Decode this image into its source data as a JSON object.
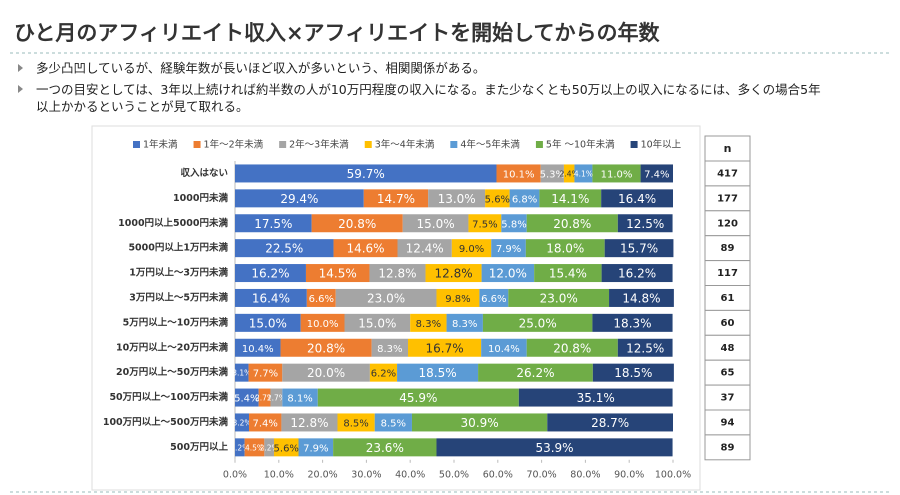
{
  "header": {
    "title": "ひと月のアフィリエイト収入×アフィリエイトを開始してからの年数",
    "bullets": [
      "多少凸凹しているが、経験年数が長いほど収入が多いという、相関関係がある。",
      "一つの目安としては、3年以上続ければ約半数の人が10万円程度の収入になる。また少なくとも50万以上の収入になるには、多くの場合5年以上かかるということが見て取れる。"
    ]
  },
  "chart_data": {
    "type": "stacked_barh",
    "categories": [
      "収入はない",
      "1000円未満",
      "1000円以上5000円未満",
      "5000円以上1万円未満",
      "1万円以上～3万円未満",
      "3万円以上～5万円未満",
      "5万円以上～10万円未満",
      "10万円以上～20万円未満",
      "20万円以上～50万円未満",
      "50万円以上～100万円未満",
      "100万円以上～500万円未満",
      "500万円以上"
    ],
    "series": [
      {
        "name": "1年未満",
        "color": "#4472c4",
        "values": [
          59.7,
          29.4,
          17.5,
          22.5,
          16.2,
          16.4,
          15.0,
          10.4,
          3.1,
          5.4,
          3.2,
          2.2
        ],
        "value_labels": [
          "59.7%",
          "29.4%",
          "17.5%",
          "22.5%",
          "16.2%",
          "16.4%",
          "15.0%",
          "10.4%",
          "3.1%",
          "5.4%",
          "3.2%",
          "2.2%"
        ]
      },
      {
        "name": "1年～2年未満",
        "color": "#ed7d31",
        "values": [
          10.1,
          14.7,
          20.8,
          14.6,
          14.5,
          6.6,
          10.0,
          20.8,
          7.7,
          2.7,
          7.4,
          4.5
        ],
        "value_labels": [
          "10.1%",
          "14.7%",
          "20.8%",
          "14.6%",
          "14.5%",
          "6.6%",
          "10.0%",
          "20.8%",
          "7.7%",
          "2.7%",
          "7.4%",
          "4.5%"
        ]
      },
      {
        "name": "2年～3年未満",
        "color": "#a5a5a5",
        "values": [
          5.3,
          13.0,
          15.0,
          12.4,
          12.8,
          23.0,
          15.0,
          8.3,
          20.0,
          2.7,
          12.8,
          2.2
        ],
        "value_labels": [
          "5.3%",
          "13.0%",
          "15.0%",
          "12.4%",
          "12.8%",
          "23.0%",
          "15.0%",
          "8.3%",
          "20.0%",
          "2.7%",
          "12.8%",
          "2.2%"
        ]
      },
      {
        "name": "3年～4年未満",
        "color": "#ffc000",
        "values": [
          2.4,
          5.6,
          7.5,
          9.0,
          12.8,
          9.8,
          8.3,
          16.7,
          6.2,
          0,
          8.5,
          5.6
        ],
        "value_labels": [
          "2.4%",
          "5.6%",
          "7.5%",
          "9.0%",
          "12.8%",
          "9.8%",
          "8.3%",
          "16.7%",
          "6.2%",
          null,
          "8.5%",
          "5.6%"
        ]
      },
      {
        "name": "4年～5年未満",
        "color": "#5b9bd5",
        "values": [
          4.1,
          6.8,
          5.8,
          7.9,
          12.0,
          6.6,
          8.3,
          10.4,
          18.5,
          8.1,
          8.5,
          7.9
        ],
        "value_labels": [
          "4.1%",
          "6.8%",
          "5.8%",
          "7.9%",
          "12.0%",
          "6.6%",
          "8.3%",
          "10.4%",
          "18.5%",
          "8.1%",
          "8.5%",
          "7.9%"
        ]
      },
      {
        "name": "5年 ～10年未満",
        "color": "#70ad47",
        "values": [
          11.0,
          14.1,
          20.8,
          18.0,
          15.4,
          23.0,
          25.0,
          20.8,
          26.2,
          45.9,
          30.9,
          23.6
        ],
        "value_labels": [
          "11.0%",
          "14.1%",
          "20.8%",
          "18.0%",
          "15.4%",
          "23.0%",
          "25.0%",
          "20.8%",
          "26.2%",
          "45.9%",
          "30.9%",
          "23.6%"
        ]
      },
      {
        "name": "10年以上",
        "color": "#264478",
        "values": [
          7.4,
          16.4,
          12.5,
          15.7,
          16.2,
          14.8,
          18.3,
          12.5,
          18.5,
          35.1,
          28.7,
          53.9
        ],
        "value_labels": [
          "7.4%",
          "16.4%",
          "12.5%",
          "15.7%",
          "16.2%",
          "14.8%",
          "18.3%",
          "12.5%",
          "18.5%",
          "35.1%",
          "28.7%",
          "53.9%"
        ]
      }
    ],
    "xlim": [
      0,
      100
    ],
    "xticks": [
      {
        "value": 0,
        "label": "0.0%"
      },
      {
        "value": 10,
        "label": "10.0%"
      },
      {
        "value": 20,
        "label": "20.0%"
      },
      {
        "value": 30,
        "label": "30.0%"
      },
      {
        "value": 40,
        "label": "40.0%"
      },
      {
        "value": 50,
        "label": "50.0%"
      },
      {
        "value": 60,
        "label": "60.0%"
      },
      {
        "value": 70,
        "label": "70.0%"
      },
      {
        "value": 80,
        "label": "80.0%"
      },
      {
        "value": 90,
        "label": "90.0%"
      },
      {
        "value": 100,
        "label": "100.0%"
      }
    ],
    "legend": "top",
    "n_header": "n",
    "n": [
      417,
      177,
      120,
      89,
      117,
      61,
      60,
      48,
      65,
      37,
      94,
      89
    ]
  }
}
